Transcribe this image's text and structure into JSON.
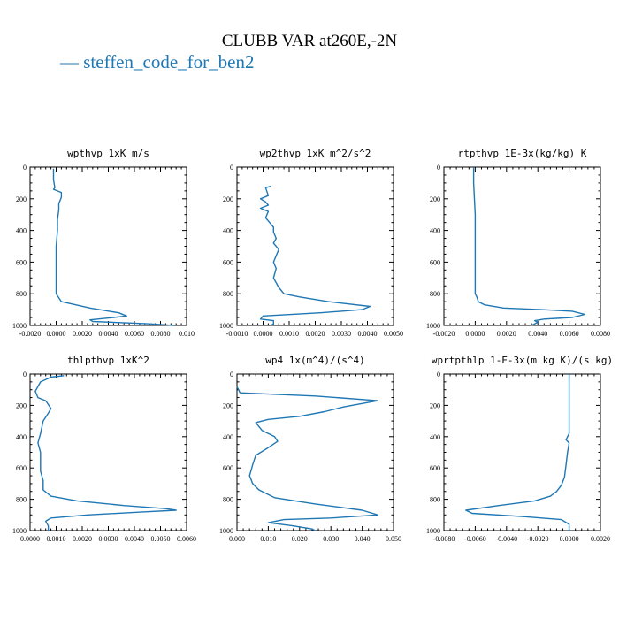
{
  "title": "CLUBB VAR at260E,-2N",
  "legend": {
    "marker": "—",
    "label": "steffen_code_for_ben2",
    "color": "#1f77b4"
  },
  "colors": {
    "line": "#1f77b4",
    "axis": "#000000"
  },
  "chart_data": [
    {
      "type": "line",
      "title": "wpthvp   1xK  m/s",
      "xlim": [
        -0.002,
        0.01
      ],
      "ylim": [
        1000,
        0
      ],
      "xticks": [
        -0.002,
        0.0,
        0.002,
        0.004,
        0.006,
        0.008,
        0.01
      ],
      "xtick_labels": [
        "-0.0020",
        "0.0000",
        "0.0020",
        "0.0040",
        "0.0060",
        "0.0080",
        "0.010"
      ],
      "yticks": [
        0,
        200,
        400,
        600,
        800,
        1000
      ],
      "ytick_labels": [
        "0",
        "200",
        "400",
        "600",
        "800",
        "1000"
      ],
      "series": [
        {
          "x": [
            -0.0002,
            -0.0002,
            -0.0001,
            -0.0002,
            0.0004,
            0.0004,
            0.0002,
            0.0002,
            0.0001,
            0.0001,
            0.0,
            0.0,
            0.0,
            0.0,
            0.0004,
            0.0026,
            0.0048,
            0.0054,
            0.0044,
            0.0026,
            0.0028,
            0.0072,
            0.009
          ],
          "y": [
            10,
            80,
            130,
            140,
            160,
            190,
            230,
            270,
            330,
            400,
            500,
            600,
            700,
            800,
            850,
            890,
            920,
            940,
            950,
            965,
            975,
            990,
            1000
          ]
        }
      ]
    },
    {
      "type": "line",
      "title": "wp2thvp   1xK  m^2/s^2",
      "xlim": [
        -0.001,
        0.005
      ],
      "ylim": [
        1000,
        0
      ],
      "xticks": [
        -0.001,
        0.0,
        0.001,
        0.002,
        0.003,
        0.004,
        0.005
      ],
      "xtick_labels": [
        "-0.0010",
        "0.0000",
        "0.0010",
        "0.0020",
        "0.0030",
        "0.0040",
        "0.0050"
      ],
      "yticks": [
        0,
        200,
        400,
        600,
        800,
        1000
      ],
      "ytick_labels": [
        "0",
        "200",
        "400",
        "600",
        "800",
        "1000"
      ],
      "series": [
        {
          "x": [
            0.0003,
            0.0001,
            0.0002,
            -0.0001,
            0.0001,
            0.0002,
            -0.0001,
            0.0002,
            0.0001,
            0.0003,
            0.0004,
            0.0004,
            0.0005,
            0.0004,
            0.0006,
            0.0005,
            0.0004,
            0.0005,
            0.0004,
            0.0006,
            0.0008,
            0.0014,
            0.0025,
            0.0041,
            0.0038,
            0.0022,
            0.0,
            -0.0001,
            0.0004,
            0.0004,
            0.0003
          ],
          "y": [
            120,
            130,
            180,
            200,
            220,
            240,
            260,
            280,
            320,
            360,
            380,
            410,
            450,
            480,
            520,
            560,
            600,
            640,
            700,
            760,
            800,
            820,
            850,
            880,
            900,
            920,
            940,
            960,
            970,
            990,
            1000
          ]
        }
      ]
    },
    {
      "type": "line",
      "title": "rtpthvp   1E-3x(kg/kg) K",
      "xlim": [
        -0.002,
        0.008
      ],
      "ylim": [
        1000,
        0
      ],
      "xticks": [
        -0.002,
        0.0,
        0.002,
        0.004,
        0.006,
        0.008
      ],
      "xtick_labels": [
        "-0.0020",
        "0.0000",
        "0.0020",
        "0.0040",
        "0.0060",
        "0.0080"
      ],
      "yticks": [
        0,
        200,
        400,
        600,
        800,
        1000
      ],
      "ytick_labels": [
        "0",
        "200",
        "400",
        "600",
        "800",
        "1000"
      ],
      "series": [
        {
          "x": [
            -0.0001,
            -0.0001,
            0.0,
            0.0,
            0.0,
            0.0,
            0.0001,
            0.0002,
            0.0006,
            0.0018,
            0.0042,
            0.0062,
            0.007,
            0.0062,
            0.0044,
            0.0038,
            0.004,
            0.0036
          ],
          "y": [
            0,
            100,
            300,
            500,
            700,
            800,
            820,
            850,
            870,
            890,
            900,
            910,
            930,
            950,
            960,
            970,
            980,
            1000
          ]
        }
      ]
    },
    {
      "type": "line",
      "title": "thlpthvp   1xK^2",
      "xlim": [
        0.0,
        0.006
      ],
      "ylim": [
        1000,
        0
      ],
      "xticks": [
        0.0,
        0.001,
        0.002,
        0.003,
        0.004,
        0.005,
        0.006
      ],
      "xtick_labels": [
        "0.0000",
        "0.0010",
        "0.0020",
        "0.0030",
        "0.0040",
        "0.0050",
        "0.0060"
      ],
      "yticks": [
        0,
        200,
        400,
        600,
        800,
        1000
      ],
      "ytick_labels": [
        "0",
        "200",
        "400",
        "600",
        "800",
        "1000"
      ],
      "series": [
        {
          "x": [
            0.0013,
            0.0008,
            0.0004,
            0.0002,
            0.0003,
            0.0006,
            0.0008,
            0.0007,
            0.0005,
            0.0004,
            0.0003,
            0.0004,
            0.0004,
            0.0004,
            0.0005,
            0.0005,
            0.0008,
            0.0018,
            0.0036,
            0.0052,
            0.0056,
            0.0044,
            0.0022,
            0.0008,
            0.0006,
            0.0007,
            0.0007
          ],
          "y": [
            10,
            20,
            50,
            110,
            150,
            170,
            220,
            250,
            300,
            380,
            440,
            500,
            560,
            620,
            680,
            740,
            780,
            810,
            840,
            860,
            870,
            880,
            900,
            920,
            940,
            970,
            1000
          ]
        }
      ]
    },
    {
      "type": "line",
      "title": "wp4   1x(m^4)/(s^4)",
      "xlim": [
        0.0,
        0.05
      ],
      "ylim": [
        1000,
        0
      ],
      "xticks": [
        0.0,
        0.01,
        0.02,
        0.03,
        0.04,
        0.05
      ],
      "xtick_labels": [
        "0.000",
        "0.010",
        "0.020",
        "0.030",
        "0.040",
        "0.050"
      ],
      "yticks": [
        0,
        200,
        400,
        600,
        800,
        1000
      ],
      "ytick_labels": [
        "0",
        "200",
        "400",
        "600",
        "800",
        "1000"
      ],
      "series": [
        {
          "x": [
            0.0,
            0.001,
            0.025,
            0.045,
            0.034,
            0.028,
            0.02,
            0.01,
            0.006,
            0.008,
            0.012,
            0.013,
            0.01,
            0.006,
            0.005,
            0.004,
            0.005,
            0.007,
            0.012,
            0.025,
            0.04,
            0.045,
            0.03,
            0.015,
            0.01,
            0.018,
            0.024,
            0.025
          ],
          "y": [
            80,
            120,
            140,
            170,
            210,
            240,
            270,
            290,
            310,
            360,
            400,
            430,
            470,
            520,
            580,
            650,
            700,
            740,
            790,
            830,
            870,
            900,
            920,
            930,
            950,
            970,
            990,
            1000
          ]
        }
      ]
    },
    {
      "type": "line",
      "title": "wprtpthlp   1-E-3x(m kg K)/(s kg)",
      "xlim": [
        -0.008,
        0.002
      ],
      "ylim": [
        1000,
        0
      ],
      "xticks": [
        -0.008,
        -0.006,
        -0.004,
        -0.002,
        0.0,
        0.002
      ],
      "xtick_labels": [
        "-0.0080",
        "-0.0060",
        "-0.0040",
        "-0.0020",
        "0.0000",
        "0.0020"
      ],
      "yticks": [
        0,
        200,
        400,
        600,
        800,
        1000
      ],
      "ytick_labels": [
        "0",
        "200",
        "400",
        "600",
        "800",
        "1000"
      ],
      "series": [
        {
          "x": [
            0.0,
            0.0,
            0.0,
            -0.0002,
            0.0,
            -0.0001,
            -0.0002,
            -0.0003,
            -0.0005,
            -0.0008,
            -0.0012,
            -0.0022,
            -0.0045,
            -0.0066,
            -0.0062,
            -0.003,
            -0.0005,
            0.0,
            0.0
          ],
          "y": [
            0,
            200,
            380,
            420,
            440,
            500,
            580,
            660,
            710,
            750,
            780,
            810,
            840,
            870,
            890,
            910,
            930,
            960,
            1000
          ]
        }
      ]
    }
  ]
}
